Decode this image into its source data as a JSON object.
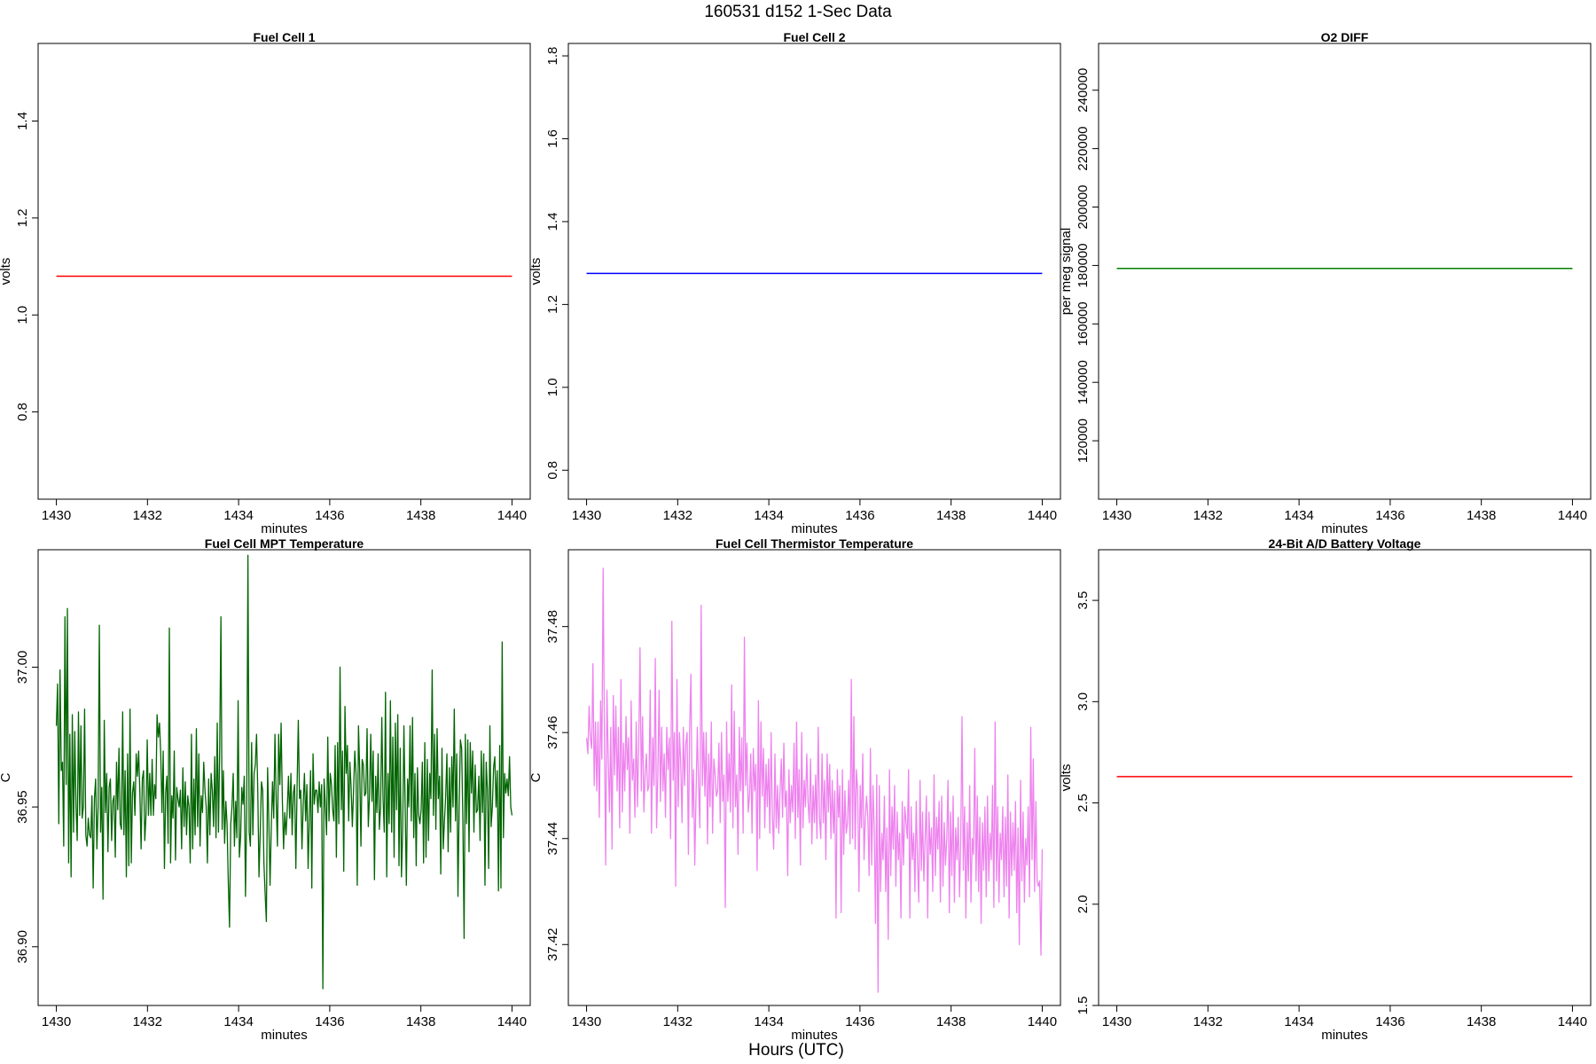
{
  "figure": {
    "title": "160531   d152   1-Sec Data",
    "bottom_label": "Hours (UTC)"
  },
  "chart_data": [
    {
      "type": "line",
      "title": "Fuel Cell 1",
      "xlabel": "minutes",
      "ylabel": "volts",
      "xlim": [
        1429.6,
        1440.4
      ],
      "ylim": [
        0.62,
        1.56
      ],
      "xticks": [
        1430,
        1432,
        1434,
        1436,
        1438,
        1440
      ],
      "yticks": [
        0.8,
        1.0,
        1.2,
        1.4
      ],
      "color": "#ff0000",
      "series": [
        {
          "kind": "constant",
          "x": [
            1430,
            1440
          ],
          "value": 1.08
        }
      ]
    },
    {
      "type": "line",
      "title": "Fuel Cell 2",
      "xlabel": "minutes",
      "ylabel": "volts",
      "xlim": [
        1429.6,
        1440.4
      ],
      "ylim": [
        0.73,
        1.83
      ],
      "xticks": [
        1430,
        1432,
        1434,
        1436,
        1438,
        1440
      ],
      "yticks": [
        0.8,
        1.0,
        1.2,
        1.4,
        1.6,
        1.8
      ],
      "color": "#0000ff",
      "series": [
        {
          "kind": "constant",
          "x": [
            1430,
            1440
          ],
          "value": 1.275
        }
      ]
    },
    {
      "type": "line",
      "title": "O2 DIFF",
      "xlabel": "minutes",
      "ylabel": "per meg signal",
      "xlim": [
        1429.6,
        1440.4
      ],
      "ylim": [
        100000,
        256000
      ],
      "xticks": [
        1430,
        1432,
        1434,
        1436,
        1438,
        1440
      ],
      "yticks": [
        120000,
        140000,
        160000,
        180000,
        200000,
        220000,
        240000
      ],
      "color": "#008000",
      "series": [
        {
          "kind": "constant",
          "x": [
            1430,
            1440
          ],
          "value": 179000
        }
      ]
    },
    {
      "type": "line",
      "title": "Fuel Cell MPT Temperature",
      "xlabel": "minutes",
      "ylabel": "C",
      "xlim": [
        1429.6,
        1440.4
      ],
      "ylim": [
        36.879,
        37.042
      ],
      "xticks": [
        1430,
        1432,
        1434,
        1436,
        1438,
        1440
      ],
      "yticks": [
        36.9,
        36.95,
        37.0
      ],
      "ytick_labels": [
        "36.90",
        "36.95",
        "37.00"
      ],
      "color": "#006400",
      "series": [
        {
          "kind": "samples",
          "x_start": 1430,
          "x_end": 1440,
          "y": [
            36.979,
            36.994,
            36.944,
            36.999,
            36.963,
            36.966,
            36.936,
            37.018,
            36.958,
            37.021,
            36.93,
            36.976,
            36.925,
            36.983,
            36.941,
            36.977,
            36.95,
            36.938,
            36.984,
            36.947,
            36.979,
            36.946,
            36.95,
            36.985,
            36.94,
            36.936,
            36.946,
            36.94,
            36.939,
            36.954,
            36.921,
            36.953,
            36.96,
            36.935,
            36.95,
            37.015,
            36.941,
            36.957,
            36.917,
            36.981,
            36.948,
            36.962,
            36.934,
            36.957,
            36.96,
            36.938,
            36.952,
            36.954,
            36.932,
            36.966,
            36.949,
            36.971,
            36.944,
            36.942,
            36.984,
            36.94,
            36.963,
            36.925,
            36.969,
            36.929,
            36.985,
            36.93,
            36.955,
            36.959,
            36.947,
            36.969,
            36.961,
            36.97,
            36.955,
            36.935,
            36.96,
            36.963,
            36.938,
            36.947,
            36.974,
            36.947,
            36.962,
            36.947,
            36.967,
            36.947,
            36.958,
            36.953,
            36.983,
            36.975,
            36.98,
            36.969,
            36.948,
            36.97,
            36.928,
            36.955,
            36.961,
            36.937,
            37.014,
            36.93,
            36.954,
            36.946,
            36.97,
            36.931,
            36.957,
            36.953,
            36.95,
            36.956,
            36.935,
            36.964,
            36.943,
            36.959,
            36.94,
            36.954,
            36.95,
            36.93,
            36.976,
            36.935,
            36.96,
            36.94,
            36.978,
            36.943,
            36.969,
            36.936,
            36.954,
            36.948,
            36.966,
            36.956,
            36.95,
            36.93,
            36.96,
            36.94,
            36.962,
            36.956,
            36.943,
            36.968,
            36.939,
            36.98,
            36.941,
            36.971,
            37.018,
            36.942,
            36.963,
            36.937,
            36.952,
            36.944,
            36.923,
            36.907,
            36.944,
            36.95,
            36.962,
            36.936,
            36.952,
            36.939,
            36.988,
            36.932,
            36.939,
            36.957,
            36.951,
            36.961,
            36.918,
            36.949,
            37.04,
            36.941,
            36.936,
            36.973,
            36.94,
            36.962,
            36.965,
            36.976,
            36.956,
            36.925,
            36.941,
            36.959,
            36.956,
            36.93,
            36.919,
            36.909,
            36.964,
            36.945,
            36.922,
            36.943,
            36.959,
            36.946,
            36.976,
            36.952,
            36.936,
            36.976,
            36.958,
            36.98,
            36.953,
            36.935,
            36.948,
            36.94,
            36.949,
            36.961,
            36.946,
            36.962,
            36.94,
            36.955,
            36.958,
            36.928,
            36.957,
            36.981,
            36.953,
            36.956,
            36.935,
            36.951,
            36.962,
            36.945,
            36.958,
            36.928,
            36.946,
            36.963,
            36.921,
            36.969,
            36.951,
            36.956,
            36.956,
            36.948,
            36.959,
            36.95,
            36.958,
            36.885,
            36.96,
            36.951,
            36.94,
            36.975,
            36.945,
            36.962,
            36.958,
            36.949,
            36.945,
            36.972,
            36.932,
            36.973,
            36.944,
            37.0,
            36.949,
            36.97,
            36.927,
            36.986,
            36.962,
            36.972,
            36.945,
            36.966,
            36.957,
            36.943,
            36.956,
            36.97,
            36.962,
            36.922,
            36.979,
            36.963,
            36.936,
            36.967,
            36.965,
            36.954,
            36.955,
            36.978,
            36.943,
            36.954,
            36.976,
            36.952,
            36.97,
            36.924,
            36.961,
            36.948,
            36.969,
            36.942,
            36.95,
            36.982,
            36.953,
            36.941,
            36.991,
            36.925,
            36.962,
            36.944,
            36.988,
            36.941,
            36.975,
            36.932,
            36.98,
            36.949,
            36.983,
            36.929,
            36.971,
            36.925,
            36.942,
            36.979,
            36.95,
            36.922,
            36.96,
            36.95,
            36.979,
            36.945,
            36.982,
            36.939,
            36.962,
            36.929,
            36.964,
            36.947,
            36.944,
            36.949,
            36.966,
            36.93,
            36.973,
            36.932,
            36.967,
            36.938,
            36.962,
            36.953,
            36.999,
            36.947,
            36.976,
            36.942,
            36.978,
            36.953,
            36.961,
            36.926,
            36.971,
            36.935,
            36.945,
            36.954,
            36.969,
            36.934,
            36.964,
            36.941,
            36.968,
            36.95,
            36.985,
            36.945,
            36.969,
            36.918,
            36.951,
            36.974,
            36.971,
            36.945,
            36.903,
            36.976,
            36.944,
            36.974,
            36.934,
            36.973,
            36.955,
            36.97,
            36.941,
            36.965,
            36.948,
            36.949,
            36.961,
            36.938,
            36.97,
            36.948,
            36.969,
            36.922,
            36.966,
            36.956,
            36.928,
            36.979,
            36.943,
            36.95,
            36.964,
            36.968,
            36.95,
            36.963,
            36.92,
            36.972,
            36.921,
            37.009,
            36.939,
            36.962,
            36.955,
            36.96,
            36.954,
            36.968,
            36.95,
            36.947
          ]
        }
      ]
    },
    {
      "type": "line",
      "title": "Fuel Cell Thermistor Temperature",
      "xlabel": "minutes",
      "ylabel": "C",
      "xlim": [
        1429.6,
        1440.4
      ],
      "ylim": [
        37.4085,
        37.4945
      ],
      "xticks": [
        1430,
        1432,
        1434,
        1436,
        1438,
        1440
      ],
      "yticks": [
        37.42,
        37.44,
        37.46,
        37.48
      ],
      "ytick_labels": [
        "37.42",
        "37.44",
        "37.46",
        "37.48"
      ],
      "color": "#ee82ee",
      "series": [
        {
          "kind": "samples",
          "x_start": 1430,
          "x_end": 1440,
          "y": [
            37.459,
            37.456,
            37.465,
            37.459,
            37.457,
            37.473,
            37.45,
            37.462,
            37.449,
            37.462,
            37.444,
            37.466,
            37.455,
            37.491,
            37.46,
            37.435,
            37.468,
            37.455,
            37.445,
            37.461,
            37.438,
            37.467,
            37.452,
            37.465,
            37.449,
            37.461,
            37.442,
            37.47,
            37.445,
            37.458,
            37.449,
            37.463,
            37.453,
            37.459,
            37.441,
            37.466,
            37.451,
            37.455,
            37.444,
            37.462,
            37.446,
            37.458,
            37.476,
            37.449,
            37.463,
            37.445,
            37.452,
            37.456,
            37.449,
            37.45,
            37.468,
            37.441,
            37.459,
            37.45,
            37.474,
            37.442,
            37.452,
            37.468,
            37.447,
            37.461,
            37.449,
            37.456,
            37.444,
            37.461,
            37.453,
            37.459,
            37.44,
            37.481,
            37.451,
            37.46,
            37.431,
            37.47,
            37.446,
            37.46,
            37.454,
            37.443,
            37.461,
            37.45,
            37.458,
            37.46,
            37.437,
            37.461,
            37.471,
            37.444,
            37.453,
            37.435,
            37.448,
            37.461,
            37.45,
            37.442,
            37.484,
            37.45,
            37.46,
            37.448,
            37.46,
            37.439,
            37.456,
            37.446,
            37.462,
            37.441,
            37.455,
            37.452,
            37.448,
            37.449,
            37.458,
            37.443,
            37.46,
            37.447,
            37.452,
            37.427,
            37.462,
            37.447,
            37.456,
            37.445,
            37.469,
            37.442,
            37.464,
            37.446,
            37.452,
            37.437,
            37.461,
            37.449,
            37.459,
            37.441,
            37.478,
            37.45,
            37.458,
            37.445,
            37.448,
            37.456,
            37.441,
            37.457,
            37.449,
            37.454,
            37.434,
            37.466,
            37.44,
            37.462,
            37.448,
            37.457,
            37.442,
            37.454,
            37.446,
            37.455,
            37.441,
            37.46,
            37.444,
            37.438,
            37.456,
            37.442,
            37.45,
            37.441,
            37.449,
            37.455,
            37.444,
            37.458,
            37.446,
            37.449,
            37.433,
            37.453,
            37.443,
            37.45,
            37.445,
            37.458,
            37.44,
            37.462,
            37.444,
            37.453,
            37.435,
            37.46,
            37.442,
            37.451,
            37.446,
            37.456,
            37.447,
            37.443,
            37.455,
            37.439,
            37.45,
            37.443,
            37.452,
            37.44,
            37.461,
            37.444,
            37.44,
            37.456,
            37.443,
            37.451,
            37.436,
            37.456,
            37.445,
            37.454,
            37.44,
            37.451,
            37.441,
            37.449,
            37.425,
            37.453,
            37.444,
            37.45,
            37.426,
            37.453,
            37.437,
            37.449,
            37.441,
            37.443,
            37.451,
            37.439,
            37.47,
            37.44,
            37.463,
            37.438,
            37.453,
            37.449,
            37.43,
            37.45,
            37.442,
            37.456,
            37.436,
            37.444,
            37.448,
            37.444,
            37.433,
            37.457,
            37.435,
            37.45,
            37.442,
            37.424,
            37.452,
            37.411,
            37.45,
            37.43,
            37.441,
            37.436,
            37.448,
            37.43,
            37.442,
            37.421,
            37.453,
            37.433,
            37.446,
            37.438,
            37.45,
            37.431,
            37.445,
            37.436,
            37.441,
            37.425,
            37.447,
            37.435,
            37.446,
            37.443,
            37.44,
            37.453,
            37.425,
            37.446,
            37.436,
            37.441,
            37.43,
            37.447,
            37.436,
            37.428,
            37.451,
            37.434,
            37.445,
            37.432,
            37.44,
            37.448,
            37.425,
            37.445,
            37.437,
            37.442,
            37.43,
            37.452,
            37.433,
            37.444,
            37.438,
            37.447,
            37.428,
            37.448,
            37.431,
            37.443,
            37.435,
            37.44,
            37.451,
            37.426,
            37.445,
            37.433,
            37.448,
            37.428,
            37.442,
            37.436,
            37.444,
            37.429,
            37.44,
            37.463,
            37.434,
            37.446,
            37.425,
            37.443,
            37.432,
            37.45,
            37.428,
            37.44,
            37.437,
            37.457,
            37.432,
            37.448,
            37.43,
            37.444,
            37.424,
            37.443,
            37.434,
            37.446,
            37.429,
            37.448,
            37.432,
            37.441,
            37.436,
            37.45,
            37.427,
            37.462,
            37.432,
            37.446,
            37.428,
            37.441,
            37.436,
            37.446,
            37.429,
            37.444,
            37.431,
            37.452,
            37.425,
            37.445,
            37.433,
            37.443,
            37.434,
            37.447,
            37.426,
            37.442,
            37.42,
            37.451,
            37.432,
            37.445,
            37.428,
            37.44,
            37.435,
            37.446,
            37.429,
            37.461,
            37.436,
            37.455,
            37.43,
            37.447,
            37.432,
            37.431,
            37.432,
            37.418,
            37.438
          ]
        }
      ]
    },
    {
      "type": "line",
      "title": "24-Bit A/D Battery Voltage",
      "xlabel": "minutes",
      "ylabel": "volts",
      "xlim": [
        1429.6,
        1440.4
      ],
      "ylim": [
        1.5,
        3.75
      ],
      "xticks": [
        1430,
        1432,
        1434,
        1436,
        1438,
        1440
      ],
      "yticks": [
        1.5,
        2.0,
        2.5,
        3.0,
        3.5
      ],
      "color": "#ff0000",
      "series": [
        {
          "kind": "constant",
          "x": [
            1430,
            1440
          ],
          "value": 2.63
        }
      ]
    }
  ]
}
